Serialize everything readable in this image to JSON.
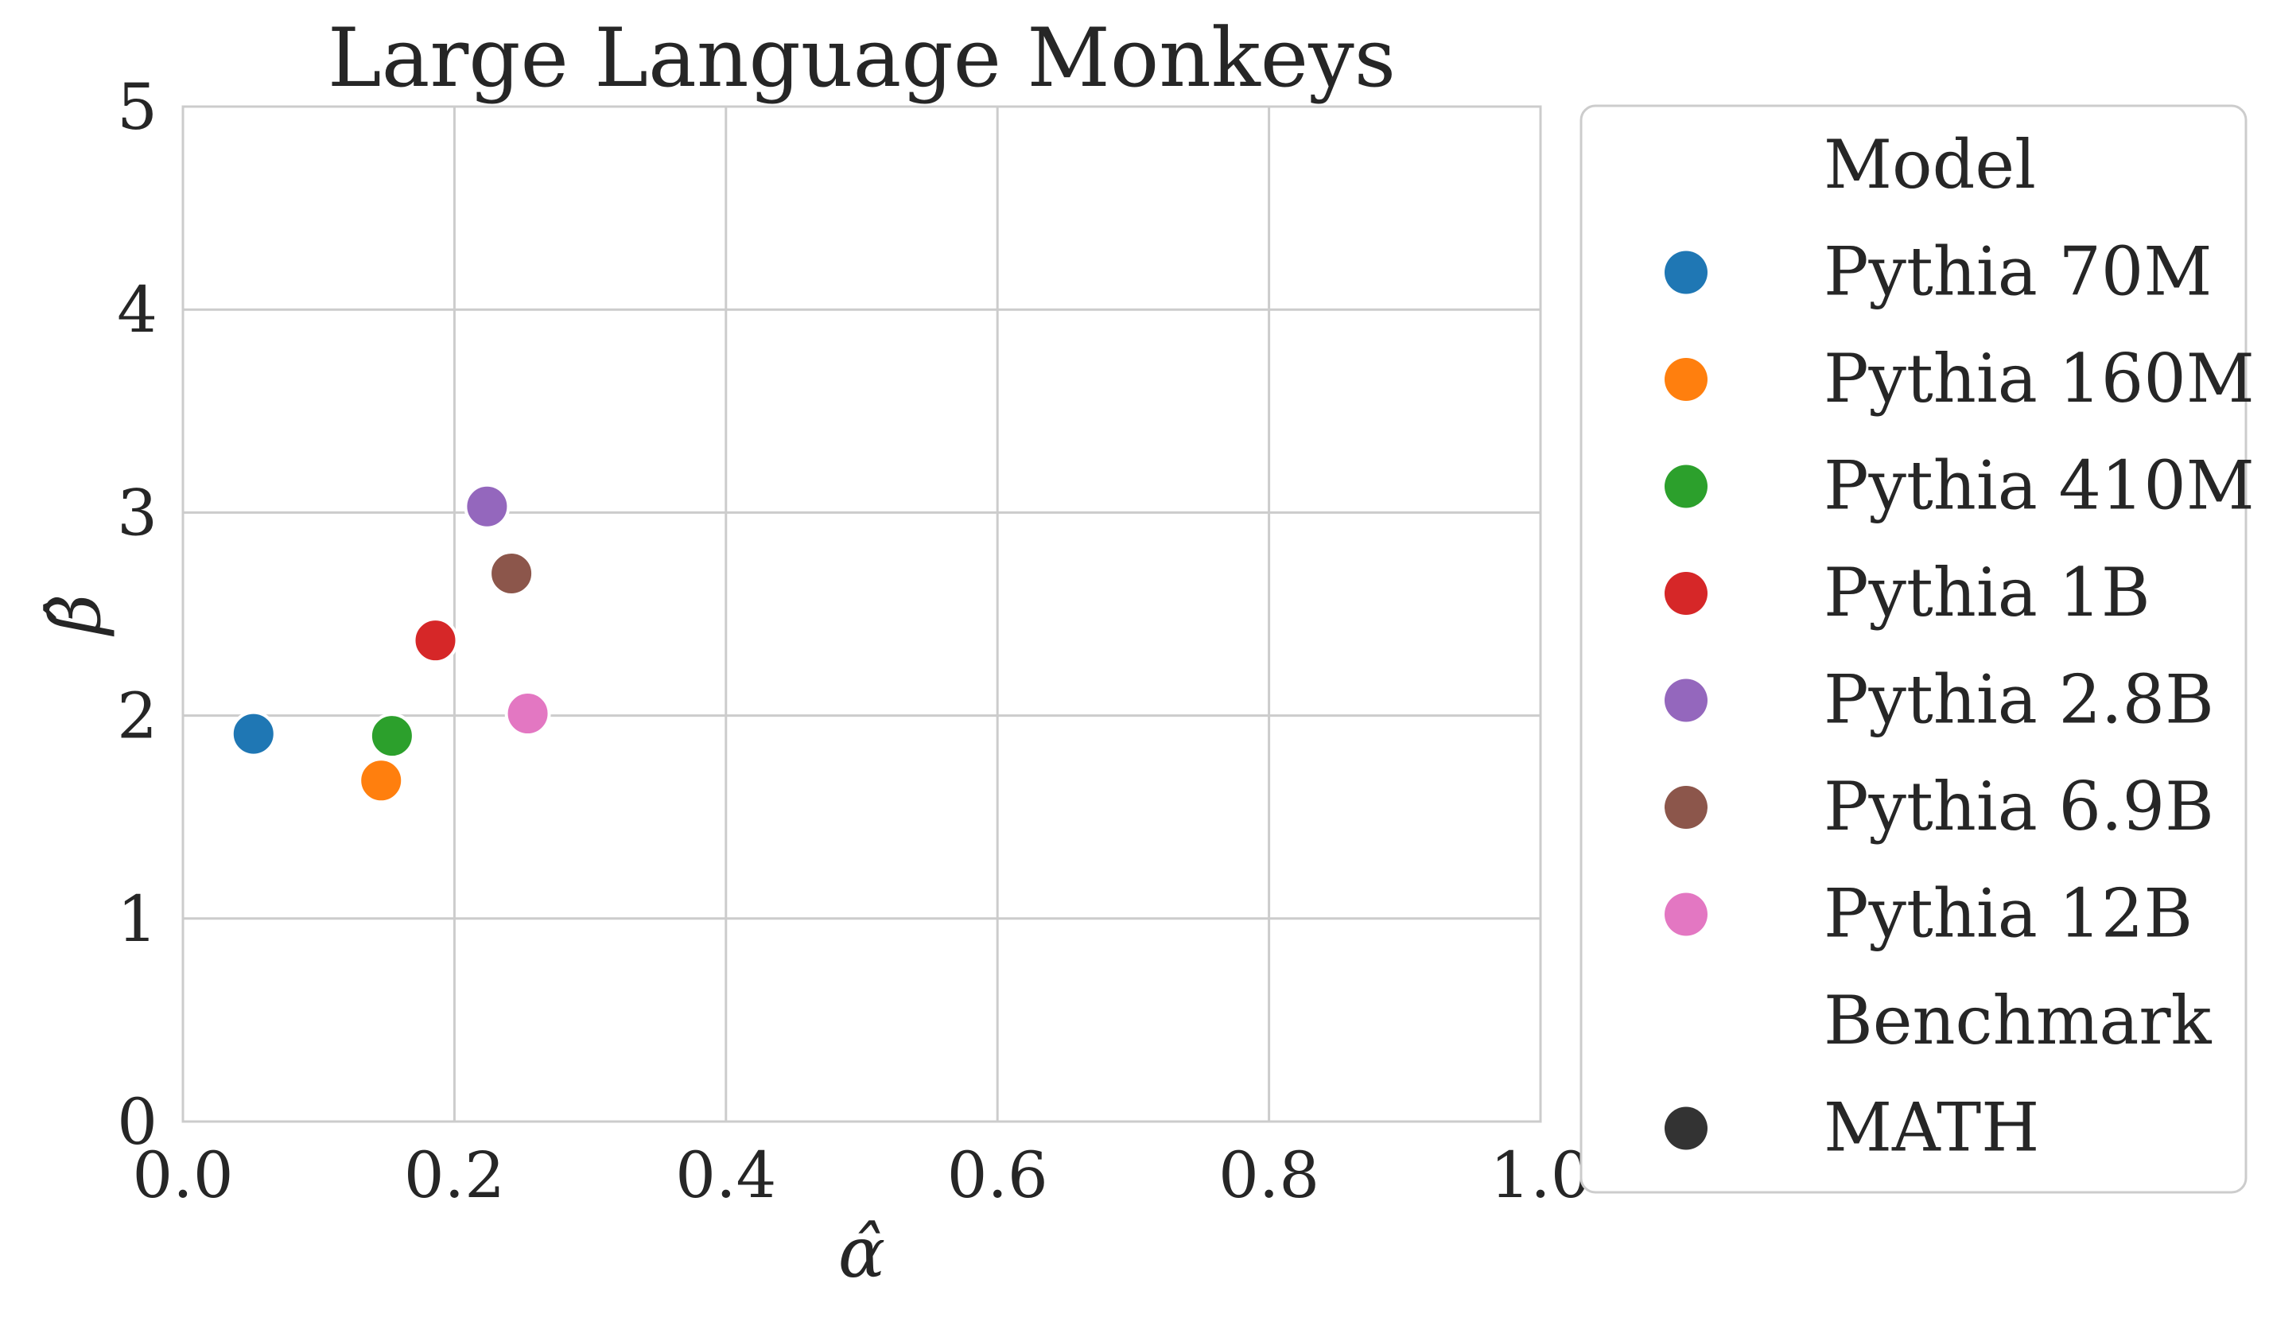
{
  "chart_data": {
    "type": "scatter",
    "title": "Large Language Monkeys",
    "xlabel": "α̂",
    "ylabel": "β̂",
    "xlim": [
      0.0,
      1.0
    ],
    "ylim": [
      0,
      5
    ],
    "xticks": [
      0.0,
      0.2,
      0.4,
      0.6,
      0.8,
      1.0
    ],
    "xtick_labels": [
      "0.0",
      "0.2",
      "0.4",
      "0.6",
      "0.8",
      "1.0"
    ],
    "yticks": [
      0,
      1,
      2,
      3,
      4,
      5
    ],
    "ytick_labels": [
      "0",
      "1",
      "2",
      "3",
      "4",
      "5"
    ],
    "grid": true,
    "legend_position": "outside-right",
    "legend": {
      "model_title": "Model",
      "benchmark_title": "Benchmark",
      "benchmarks": [
        {
          "name": "MATH",
          "color": "#333333"
        }
      ]
    },
    "series": [
      {
        "name": "Pythia 70M",
        "color": "#1f77b4",
        "benchmark": "MATH",
        "x": 0.052,
        "y": 1.91
      },
      {
        "name": "Pythia 160M",
        "color": "#ff7f0e",
        "benchmark": "MATH",
        "x": 0.146,
        "y": 1.68
      },
      {
        "name": "Pythia 410M",
        "color": "#2ca02c",
        "benchmark": "MATH",
        "x": 0.154,
        "y": 1.9
      },
      {
        "name": "Pythia 1B",
        "color": "#d62728",
        "benchmark": "MATH",
        "x": 0.186,
        "y": 2.37
      },
      {
        "name": "Pythia 2.8B",
        "color": "#9467bd",
        "benchmark": "MATH",
        "x": 0.224,
        "y": 3.03
      },
      {
        "name": "Pythia 6.9B",
        "color": "#8c564b",
        "benchmark": "MATH",
        "x": 0.242,
        "y": 2.7
      },
      {
        "name": "Pythia 12B",
        "color": "#e377c2",
        "benchmark": "MATH",
        "x": 0.254,
        "y": 2.01
      }
    ]
  }
}
